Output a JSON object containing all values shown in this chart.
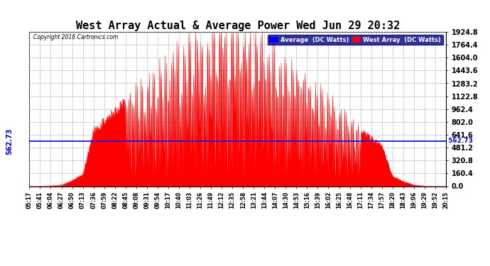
{
  "title": "West Array Actual & Average Power Wed Jun 29 20:32",
  "copyright": "Copyright 2016 Cartronics.com",
  "legend_avg": "Average  (DC Watts)",
  "legend_west": "West Array  (DC Watts)",
  "avg_value": 562.73,
  "y_max": 1924.8,
  "y_min": 0.0,
  "y_ticks": [
    0.0,
    160.4,
    320.8,
    481.2,
    641.6,
    802.0,
    962.4,
    1122.8,
    1283.2,
    1443.6,
    1604.0,
    1764.4,
    1924.8
  ],
  "background_color": "#ffffff",
  "fill_color": "#ff0000",
  "line_color": "#ff0000",
  "avg_line_color": "#0000ff",
  "grid_color": "#aaaaaa",
  "x_labels": [
    "05:17",
    "05:41",
    "06:04",
    "06:27",
    "06:50",
    "07:13",
    "07:36",
    "07:59",
    "08:22",
    "08:45",
    "09:08",
    "09:31",
    "09:54",
    "10:17",
    "10:40",
    "11:03",
    "11:26",
    "11:49",
    "12:12",
    "12:35",
    "12:58",
    "13:21",
    "13:44",
    "14:07",
    "14:30",
    "14:53",
    "15:16",
    "15:39",
    "16:02",
    "16:25",
    "16:48",
    "17:11",
    "17:34",
    "17:57",
    "18:20",
    "18:43",
    "19:06",
    "19:29",
    "19:52",
    "20:15"
  ]
}
